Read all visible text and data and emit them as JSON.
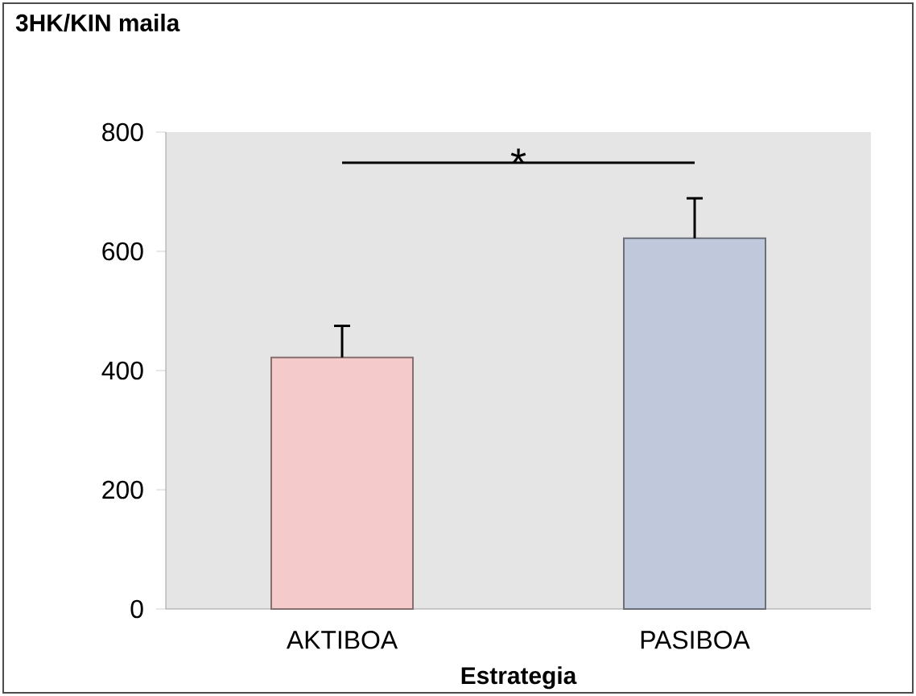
{
  "chart_data": {
    "type": "bar",
    "title": "3HK/KIN maila",
    "xlabel": "Estrategia",
    "categories": [
      "AKTIBOA",
      "PASIBOA"
    ],
    "values": [
      422,
      622
    ],
    "colors": [
      "#f4caca",
      "#c0c9dc"
    ],
    "errors": [
      [
        422,
        475
      ],
      [
        622,
        689
      ]
    ],
    "ylim": [
      0,
      800
    ],
    "yticks": [
      0,
      200,
      400,
      600,
      800
    ],
    "annotations": [
      "*"
    ]
  }
}
